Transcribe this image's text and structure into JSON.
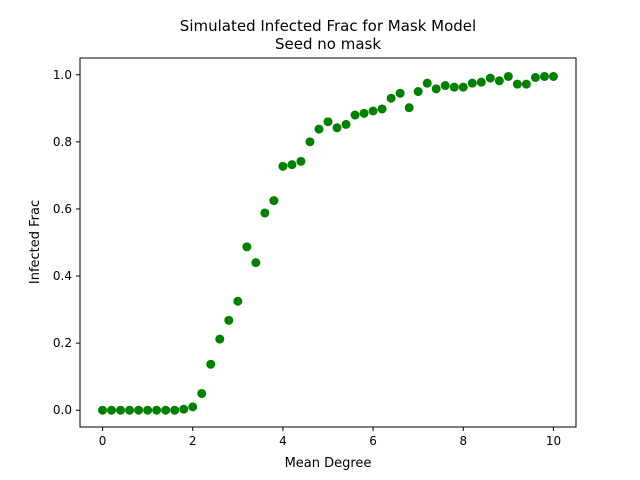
{
  "chart_data": {
    "type": "scatter",
    "title": "Simulated Infected Frac for Mask Model",
    "subtitle": "Seed no mask",
    "xlabel": "Mean Degree",
    "ylabel": "Infected Frac",
    "xlim": [
      -0.5,
      10.5
    ],
    "ylim": [
      -0.05,
      1.05
    ],
    "xticks": [
      0,
      2,
      4,
      6,
      8,
      10
    ],
    "xtick_labels": [
      "0",
      "2",
      "4",
      "6",
      "8",
      "10"
    ],
    "yticks": [
      0.0,
      0.2,
      0.4,
      0.6,
      0.8,
      1.0
    ],
    "ytick_labels": [
      "0.0",
      "0.2",
      "0.4",
      "0.6",
      "0.8",
      "1.0"
    ],
    "grid": false,
    "legend": "none",
    "marker_color": "#008000",
    "series": [
      {
        "x": [
          0.0,
          0.2,
          0.4,
          0.6,
          0.8,
          1.0,
          1.2,
          1.4,
          1.6,
          1.8,
          2.0,
          2.2,
          2.4,
          2.6,
          2.8,
          3.0,
          3.2,
          3.4,
          3.6,
          3.8,
          4.0,
          4.2,
          4.4,
          4.6,
          4.8,
          5.0,
          5.2,
          5.4,
          5.6,
          5.8,
          6.0,
          6.2,
          6.4,
          6.6,
          6.8,
          7.0,
          7.2,
          7.4,
          7.6,
          7.8,
          8.0,
          8.2,
          8.4,
          8.6,
          8.8,
          9.0,
          9.2,
          9.4,
          9.6,
          9.8,
          10.0
        ],
        "y": [
          0.0,
          0.0,
          0.0,
          0.0,
          0.0,
          0.0,
          0.0,
          0.0,
          0.0,
          0.003,
          0.01,
          0.05,
          0.137,
          0.212,
          0.268,
          0.325,
          0.487,
          0.44,
          0.588,
          0.625,
          0.727,
          0.732,
          0.742,
          0.8,
          0.838,
          0.86,
          0.842,
          0.852,
          0.88,
          0.885,
          0.892,
          0.898,
          0.93,
          0.945,
          0.902,
          0.95,
          0.975,
          0.958,
          0.968,
          0.963,
          0.963,
          0.975,
          0.978,
          0.99,
          0.982,
          0.995,
          0.972,
          0.972,
          0.992,
          0.995,
          0.995
        ]
      }
    ]
  }
}
